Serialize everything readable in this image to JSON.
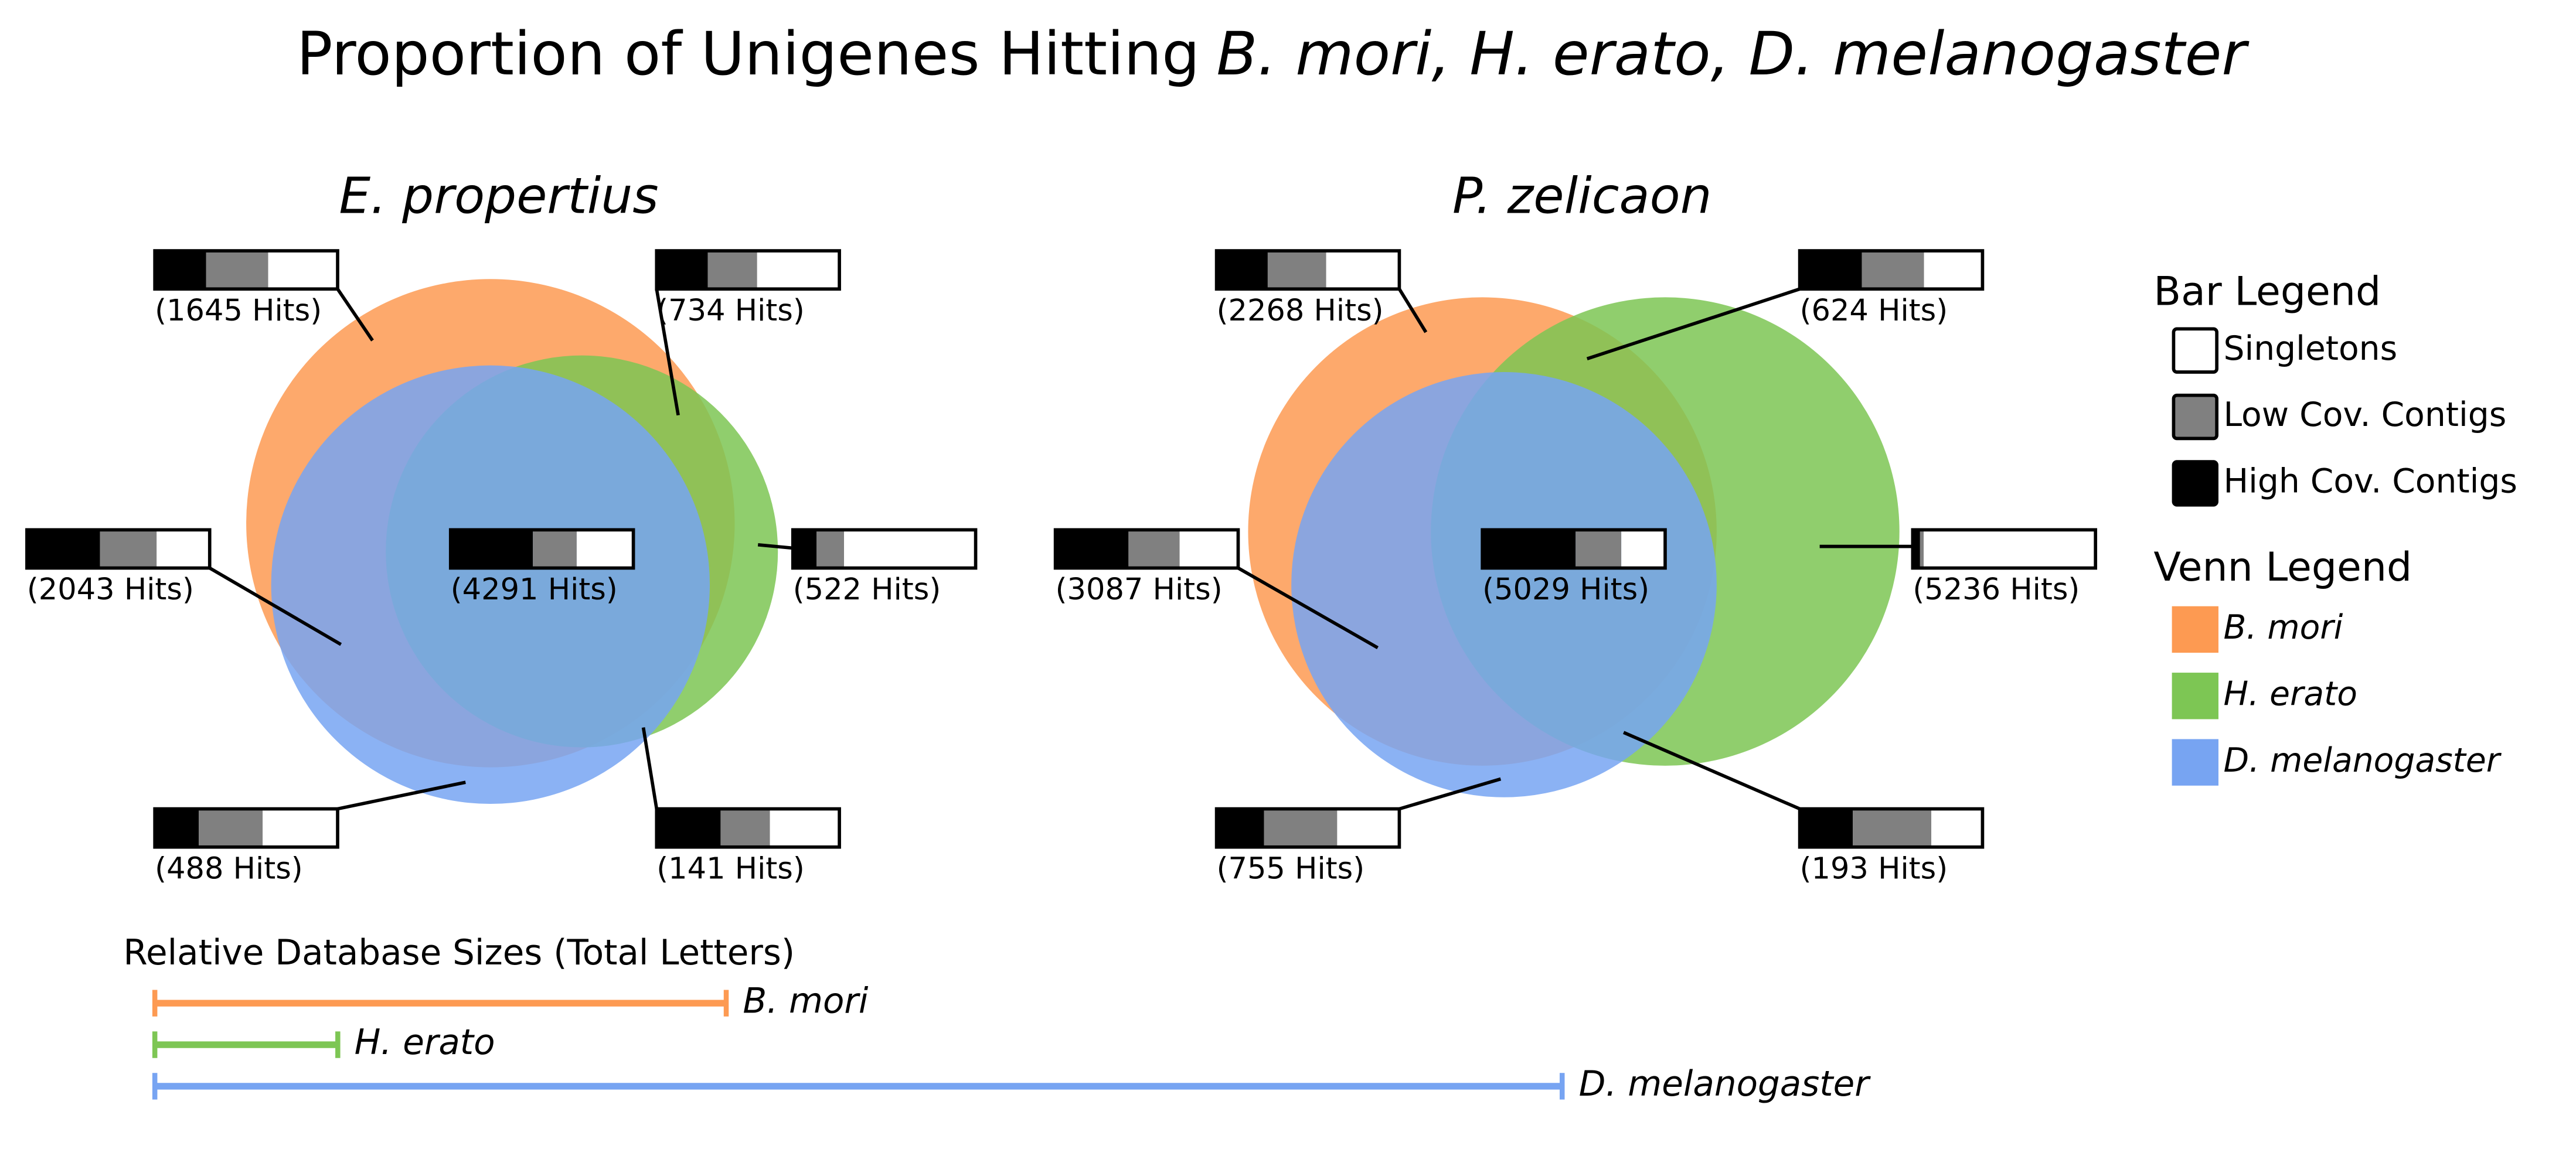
{
  "title": {
    "prefix": "Proportion of Unigenes Hitting",
    "species": "B. mori, H. erato, D. melanogaster"
  },
  "venn_panels": [
    {
      "title": "E. propertius",
      "regions": [
        {
          "hits_label": "(1645 Hits)",
          "bar": [
            0.28,
            0.34,
            0.38
          ]
        },
        {
          "hits_label": "(734 Hits)",
          "bar": [
            0.28,
            0.27,
            0.45
          ]
        },
        {
          "hits_label": "(2043 Hits)",
          "bar": [
            0.4,
            0.31,
            0.29
          ]
        },
        {
          "hits_label": "(4291 Hits)",
          "bar": [
            0.45,
            0.24,
            0.31
          ]
        },
        {
          "hits_label": "(522 Hits)",
          "bar": [
            0.13,
            0.15,
            0.72
          ]
        },
        {
          "hits_label": "(488 Hits)",
          "bar": [
            0.24,
            0.35,
            0.41
          ]
        },
        {
          "hits_label": "(141 Hits)",
          "bar": [
            0.35,
            0.27,
            0.38
          ]
        }
      ]
    },
    {
      "title": "P. zelicaon",
      "regions": [
        {
          "hits_label": "(2268 Hits)",
          "bar": [
            0.28,
            0.32,
            0.4
          ]
        },
        {
          "hits_label": "(624 Hits)",
          "bar": [
            0.34,
            0.34,
            0.32
          ]
        },
        {
          "hits_label": "(3087 Hits)",
          "bar": [
            0.4,
            0.28,
            0.32
          ]
        },
        {
          "hits_label": "(5029 Hits)",
          "bar": [
            0.51,
            0.25,
            0.24
          ]
        },
        {
          "hits_label": "(5236 Hits)",
          "bar": [
            0.04,
            0.02,
            0.94
          ]
        },
        {
          "hits_label": "(755 Hits)",
          "bar": [
            0.26,
            0.4,
            0.34
          ]
        },
        {
          "hits_label": "(193 Hits)",
          "bar": [
            0.29,
            0.43,
            0.28
          ]
        }
      ]
    }
  ],
  "bar_legend": {
    "title": "Bar Legend",
    "items": [
      {
        "label": "Singletons",
        "color": "#ffffff"
      },
      {
        "label": "Low Cov. Contigs",
        "color": "#808080"
      },
      {
        "label": "High Cov. Contigs",
        "color": "#000000"
      }
    ]
  },
  "venn_legend": {
    "title": "Venn Legend",
    "items": [
      {
        "label": "B. mori",
        "color": "#fd9a52"
      },
      {
        "label": "H. erato",
        "color": "#7dc654"
      },
      {
        "label": "D. melanogaster",
        "color": "#77a4f2"
      }
    ]
  },
  "database_sizes": {
    "title": "Relative Database Sizes (Total Letters)",
    "items": [
      {
        "label": "B. mori",
        "relative_size": 40.6
      },
      {
        "label": "H. erato",
        "relative_size": 13.0
      },
      {
        "label": "D. melanogaster",
        "relative_size": 100
      }
    ]
  }
}
